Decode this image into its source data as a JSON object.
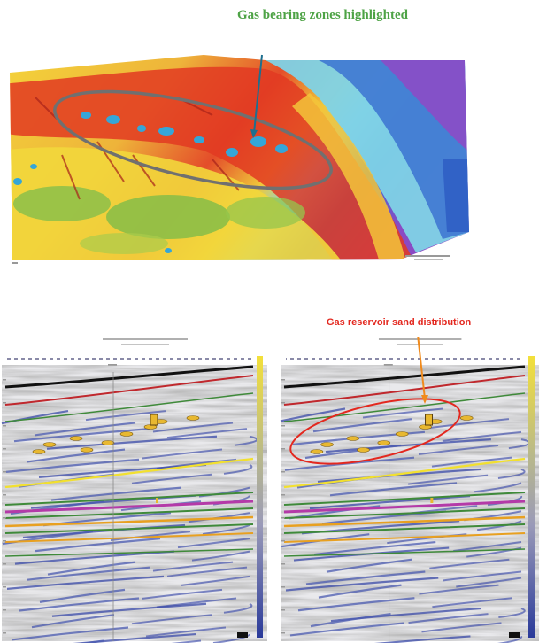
{
  "annotations": {
    "top": "Gas bearing zones highlighted",
    "bottom": "Gas reservoir sand distribution"
  },
  "colors": {
    "top_label": "#4ea346",
    "bottom_label": "#e3281f",
    "arrow_top": "#1d6f8f",
    "arrow_bottom": "#f08a1c",
    "ellipse_top": "#707070",
    "ellipse_bottom": "#e3281f",
    "horizon_black": "#111111",
    "horizon_red": "#c0282d",
    "horizon_yellow": "#f2e02f",
    "horizon_magenta": "#b43aa8",
    "horizon_green": "#3f8a3a",
    "horizon_orange": "#e8a020"
  },
  "figures": {
    "attribute_map": {
      "icon": "seismic-attribute-map"
    },
    "sections": [
      {
        "icon": "seismic-section-left"
      },
      {
        "icon": "seismic-section-right"
      }
    ]
  }
}
